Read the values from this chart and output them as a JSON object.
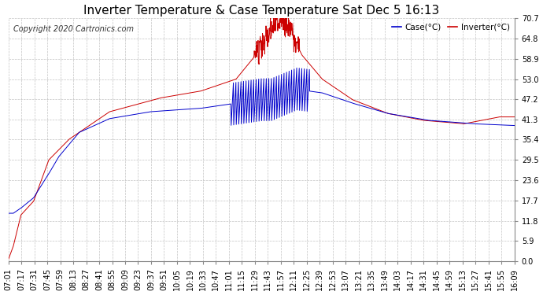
{
  "title": "Inverter Temperature & Case Temperature Sat Dec 5 16:13",
  "copyright": "Copyright 2020 Cartronics.com",
  "legend_case": "Case(°C)",
  "legend_inverter": "Inverter(°C)",
  "yticks": [
    0.0,
    5.9,
    11.8,
    17.7,
    23.6,
    29.5,
    35.4,
    41.3,
    47.2,
    53.0,
    58.9,
    64.8,
    70.7
  ],
  "xtick_labels": [
    "07:01",
    "07:17",
    "07:31",
    "07:45",
    "07:59",
    "08:13",
    "08:27",
    "08:41",
    "08:55",
    "09:09",
    "09:23",
    "09:37",
    "09:51",
    "10:05",
    "10:19",
    "10:33",
    "10:47",
    "11:01",
    "11:15",
    "11:29",
    "11:43",
    "11:57",
    "12:11",
    "12:25",
    "12:39",
    "12:53",
    "13:07",
    "13:21",
    "13:35",
    "13:49",
    "14:03",
    "14:17",
    "14:31",
    "14:45",
    "14:59",
    "15:13",
    "15:27",
    "15:41",
    "15:55",
    "16:09"
  ],
  "ylim": [
    0.0,
    70.7
  ],
  "background_color": "#ffffff",
  "plot_bg_color": "#ffffff",
  "grid_color": "#aaaaaa",
  "case_color": "#0000cc",
  "inverter_color": "#cc0000",
  "title_fontsize": 11,
  "axis_fontsize": 7,
  "copyright_fontsize": 7
}
